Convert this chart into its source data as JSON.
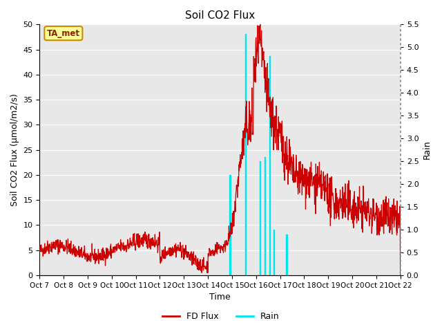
{
  "title": "Soil CO2 Flux",
  "ylabel_left": "Soil CO2 Flux (μmol/m2/s)",
  "ylabel_right": "Rain",
  "xlabel": "Time",
  "ylim_left": [
    0,
    50
  ],
  "ylim_right": [
    0,
    5.5
  ],
  "yticks_left": [
    0,
    5,
    10,
    15,
    20,
    25,
    30,
    35,
    40,
    45,
    50
  ],
  "yticks_right": [
    0.0,
    0.5,
    1.0,
    1.5,
    2.0,
    2.5,
    3.0,
    3.5,
    4.0,
    4.5,
    5.0,
    5.5
  ],
  "xtick_labels": [
    "Oct 7",
    "Oct 8",
    "Oct 9",
    "Oct 10",
    "Oct 11",
    "Oct 12",
    "Oct 13",
    "Oct 14",
    "Oct 15",
    "Oct 16",
    "Oct 17",
    "Oct 18",
    "Oct 19",
    "Oct 20",
    "Oct 21",
    "Oct 22"
  ],
  "flux_color": "#cc0000",
  "rain_color": "#00e5ee",
  "annotation_text": "TA_met",
  "annotation_box_facecolor": "#ffff99",
  "annotation_box_edgecolor": "#cc8800",
  "annotation_text_color": "#882200",
  "background_color": "#e8e8e8",
  "grid_color": "#ffffff",
  "legend_flux_label": "FD Flux",
  "legend_rain_label": "Rain"
}
